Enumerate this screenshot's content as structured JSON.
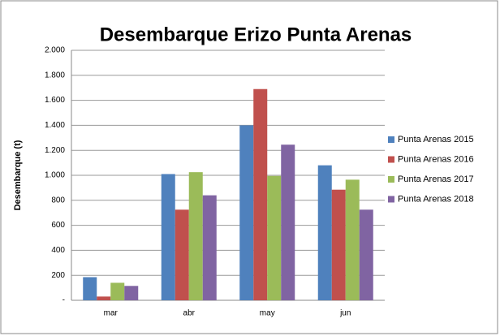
{
  "chart_data": {
    "type": "bar",
    "title": "Desembarque Erizo Punta Arenas",
    "y_label": "Desembarque (t)",
    "categories": [
      "mar",
      "abr",
      "may",
      "jun"
    ],
    "series": [
      {
        "name": "Punta Arenas 2015",
        "color": "#4f81bd",
        "values": [
          185,
          1010,
          1400,
          1080
        ]
      },
      {
        "name": "Punta Arenas 2016",
        "color": "#c0504d",
        "values": [
          30,
          725,
          1690,
          885
        ]
      },
      {
        "name": "Punta Arenas 2017",
        "color": "#9bbb59",
        "values": [
          140,
          1025,
          995,
          965
        ]
      },
      {
        "name": "Punta Arenas 2018",
        "color": "#8064a2",
        "values": [
          115,
          840,
          1245,
          725
        ]
      }
    ],
    "ylim": [
      0,
      2000
    ],
    "yticks": [
      {
        "value": 0,
        "label": "-"
      },
      200,
      400,
      600,
      800,
      {
        "value": 1000,
        "label": "1.000"
      },
      {
        "value": 1200,
        "label": "1.200"
      },
      {
        "value": 1400,
        "label": "1.400"
      },
      {
        "value": 1600,
        "label": "1.600"
      },
      {
        "value": 1800,
        "label": "1.800"
      },
      {
        "value": 2000,
        "label": "2.000"
      }
    ],
    "grid": true,
    "legend": "right"
  }
}
